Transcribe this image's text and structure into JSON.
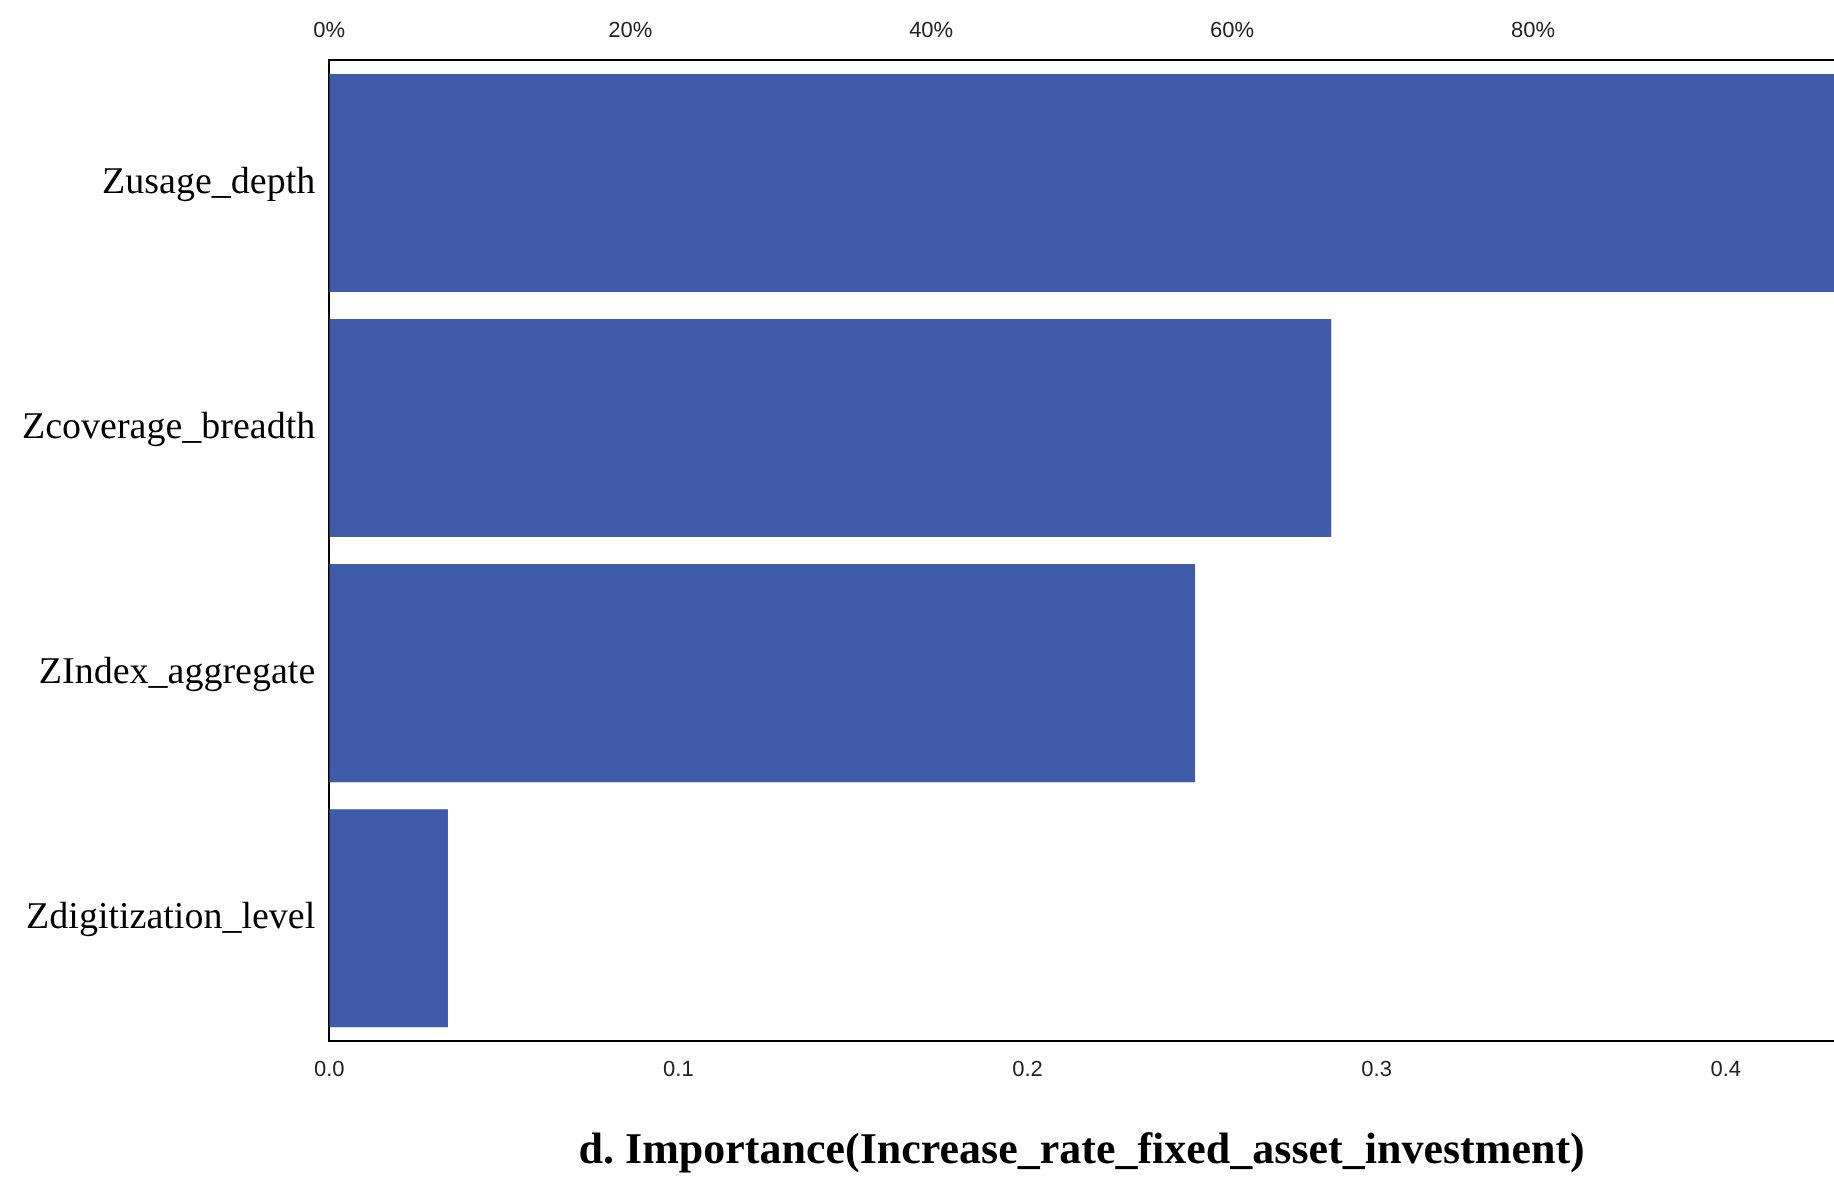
{
  "chart_data": {
    "type": "bar",
    "orientation": "horizontal",
    "xlabel": "d. Importance(Increase_rate_fixed_asset_investment)",
    "categories": [
      "Zusage_depth",
      "Zcoverage_breadth",
      "ZIndex_aggregate",
      "Zdigitization_level"
    ],
    "values": [
      0.431,
      0.287,
      0.248,
      0.034
    ],
    "color": "#3f5ba9",
    "xlim": [
      0,
      0.431
    ],
    "xticks": [
      {
        "value": 0,
        "label": "0.0"
      },
      0.1,
      0.2,
      0.3,
      0.4
    ],
    "x2lim": [
      0,
      100
    ],
    "x2ticks": [
      {
        "value": 0,
        "label": "0%"
      },
      {
        "value": 20,
        "label": "20%"
      },
      {
        "value": 40,
        "label": "40%"
      },
      {
        "value": 60,
        "label": "60%"
      },
      {
        "value": 80,
        "label": "80%"
      }
    ],
    "grid": false,
    "legend": false
  }
}
